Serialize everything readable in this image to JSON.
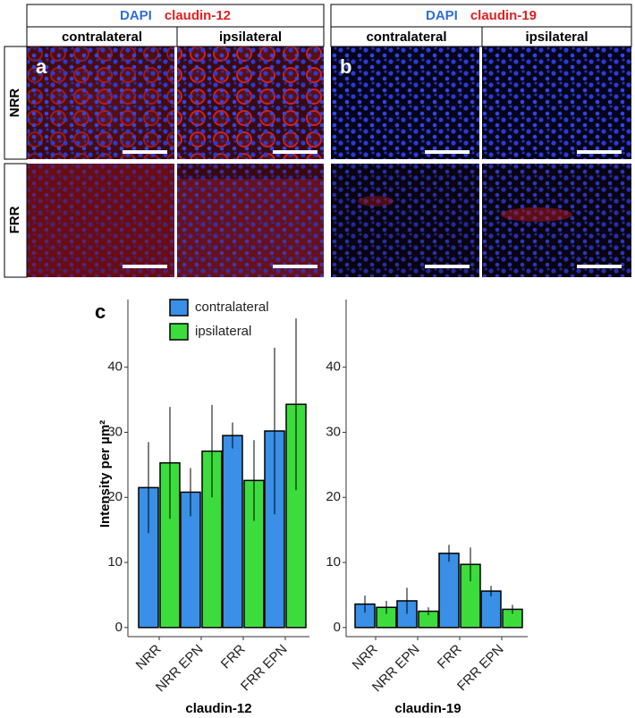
{
  "figure": {
    "rows": [
      "NRR",
      "FRR"
    ],
    "panels": [
      {
        "label": "a",
        "stains": [
          "DAPI",
          "claudin-12"
        ],
        "columns": [
          "contralateral",
          "ipsilateral"
        ]
      },
      {
        "label": "b",
        "stains": [
          "DAPI",
          "claudin-19"
        ],
        "columns": [
          "contralateral",
          "ipsilateral"
        ]
      }
    ],
    "chart_label": "c"
  },
  "chart_data": [
    {
      "type": "bar",
      "ylabel": "Intensity per µm²",
      "xlabel": "claudin-12",
      "categories": [
        "NRR",
        "NRR EPN",
        "FRR",
        "FRR EPN"
      ],
      "series": [
        {
          "name": "contralateral",
          "color": "#3a8fe6",
          "values": [
            21.5,
            20.8,
            29.5,
            30.2
          ],
          "errors": [
            7.0,
            3.7,
            2.0,
            12.8
          ]
        },
        {
          "name": "ipsilateral",
          "color": "#3ddc3d",
          "values": [
            25.3,
            27.1,
            22.6,
            34.3
          ],
          "errors": [
            8.6,
            7.1,
            6.2,
            13.2
          ]
        }
      ],
      "ylim": [
        -1.4,
        50.4
      ],
      "yticks": [
        0,
        10,
        20,
        30,
        40
      ],
      "legend": "top-left"
    },
    {
      "type": "bar",
      "xlabel": "claudin-19",
      "categories": [
        "NRR",
        "NRR EPN",
        "FRR",
        "FRR EPN"
      ],
      "series": [
        {
          "color": "#3a8fe6",
          "values": [
            3.6,
            4.1,
            11.4,
            5.6
          ],
          "errors": [
            1.3,
            2.0,
            1.3,
            0.8
          ]
        },
        {
          "color": "#3ddc3d",
          "values": [
            3.1,
            2.5,
            9.7,
            2.8
          ],
          "errors": [
            1.0,
            0.6,
            2.6,
            0.7
          ]
        }
      ],
      "ylim": [
        -1.4,
        50.4
      ],
      "yticks": [
        0,
        10,
        20,
        30,
        40
      ]
    }
  ]
}
